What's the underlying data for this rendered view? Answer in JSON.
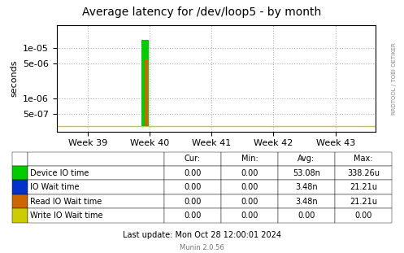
{
  "chart_data": {
    "type": "area",
    "title": "Average latency for /dev/loop5 - by month",
    "y_label": "seconds",
    "log": "y",
    "grid": true,
    "xlim": [
      38.5,
      43.65
    ],
    "xticks": [
      {
        "value": 39,
        "label": "Week 39"
      },
      {
        "value": 40,
        "label": "Week 40"
      },
      {
        "value": 41,
        "label": "Week 41"
      },
      {
        "value": 42,
        "label": "Week 42"
      },
      {
        "value": 43,
        "label": "Week 43"
      }
    ],
    "ylim": [
      2.2e-07,
      2.8e-05
    ],
    "yticks": [
      {
        "value": 5e-07,
        "label": "5e-07"
      },
      {
        "value": 1e-06,
        "label": "1e-06"
      },
      {
        "value": 5e-06,
        "label": "5e-06"
      },
      {
        "value": 1e-05,
        "label": "1e-05"
      }
    ],
    "baseline": 2.8e-07,
    "series": [
      {
        "name": "Device IO time",
        "type": "area",
        "color": "#00cc00",
        "x": [
          38.5,
          39.875,
          39.875,
          39.985,
          39.985,
          43.65
        ],
        "values": [
          2.8e-07,
          2.8e-07,
          1.45e-05,
          1.45e-05,
          2.8e-07,
          2.8e-07
        ]
      },
      {
        "name": "IO Wait time",
        "type": "line",
        "color": "#0033cc",
        "x": [
          38.5,
          43.65
        ],
        "values": [
          null,
          null
        ]
      },
      {
        "name": "Read IO Wait time",
        "type": "area",
        "color": "#cc6600",
        "x": [
          38.5,
          39.917,
          39.917,
          39.973,
          39.973,
          43.65
        ],
        "values": [
          2.8e-07,
          2.8e-07,
          5.8e-06,
          5.8e-06,
          2.8e-07,
          2.8e-07
        ]
      },
      {
        "name": "Write IO Wait time",
        "type": "line",
        "color": "#cccc00",
        "x": [
          38.5,
          43.65
        ],
        "values": [
          2.8e-07,
          2.8e-07
        ]
      }
    ],
    "legend_table": {
      "columns": [
        "Cur:",
        "Min:",
        "Avg:",
        "Max:"
      ],
      "rows": [
        [
          "0.00",
          "0.00",
          "53.08n",
          "338.26u"
        ],
        [
          "0.00",
          "0.00",
          "3.48n",
          "21.21u"
        ],
        [
          "0.00",
          "0.00",
          "3.48n",
          "21.21u"
        ],
        [
          "0.00",
          "0.00",
          "0.00",
          "0.00"
        ]
      ]
    },
    "footer": [
      "Last update: Mon Oct 28 12:00:01 2024",
      "Munin 2.0.56"
    ],
    "side_note": "RRDTOOL / TOBI OETIKER"
  }
}
